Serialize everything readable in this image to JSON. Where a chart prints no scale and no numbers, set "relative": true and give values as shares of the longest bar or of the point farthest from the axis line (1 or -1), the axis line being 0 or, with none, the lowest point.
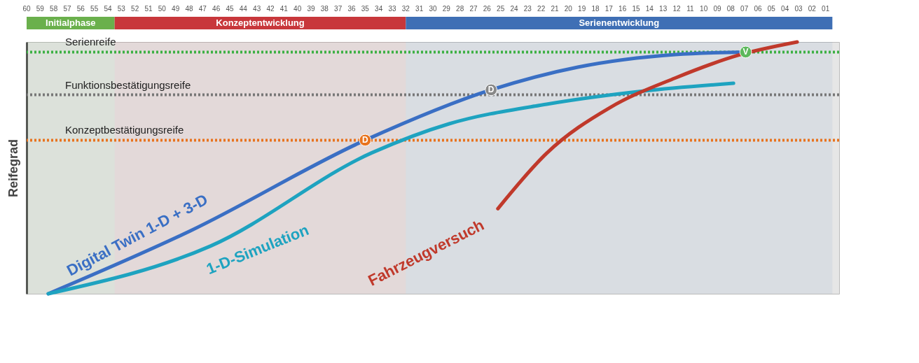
{
  "chart_data": {
    "type": "line",
    "relative": true,
    "ylabel": "Reifegrad",
    "grid": false,
    "marker": "none",
    "line_style": "solid",
    "xlim": [
      60,
      0
    ],
    "xticks": [
      60,
      59,
      58,
      57,
      56,
      55,
      54,
      53,
      52,
      51,
      50,
      49,
      48,
      47,
      46,
      45,
      44,
      43,
      42,
      41,
      40,
      39,
      38,
      37,
      36,
      35,
      34,
      33,
      32,
      31,
      30,
      29,
      28,
      27,
      26,
      25,
      24,
      23,
      22,
      21,
      20,
      19,
      18,
      17,
      16,
      15,
      14,
      13,
      12,
      11,
      10,
      {
        "value": 9,
        "label": "09"
      },
      {
        "value": 8,
        "label": "08"
      },
      {
        "value": 7,
        "label": "07"
      },
      {
        "value": 6,
        "label": "06"
      },
      {
        "value": 5,
        "label": "05"
      },
      {
        "value": 4,
        "label": "04"
      },
      {
        "value": 3,
        "label": "03"
      },
      {
        "value": 2,
        "label": "02"
      },
      {
        "value": 1,
        "label": "01"
      }
    ],
    "series": [
      {
        "name": "Digital Twin 1-D + 3-D",
        "color": "#3a6fc4",
        "x": [
          58.4,
          47.9,
          35.0,
          25.7,
          19.3,
          12.1,
          6.9
        ],
        "values": [
          0,
          0.25,
          0.61,
          0.81,
          0.9,
          0.95,
          0.96
        ]
      },
      {
        "name": "1-D-Simulation",
        "color": "#1ea3c0",
        "x": [
          58.4,
          46.4,
          34.5,
          28.8,
          21.6,
          14.5,
          7.8
        ],
        "values": [
          0,
          0.19,
          0.56,
          0.675,
          0.753,
          0.805,
          0.836
        ]
      },
      {
        "name": "Fahrzeugversuch",
        "color": "#c0392b",
        "x": [
          25.2,
          21.6,
          16.9,
          12.1,
          7.4,
          3.1
        ],
        "values": [
          0.338,
          0.558,
          0.74,
          0.857,
          0.948,
          1.0
        ]
      }
    ],
    "ref_lines": [
      {
        "axis": "y",
        "value": 0.96,
        "label": "Serienreife",
        "color": "#3cb043",
        "line_style": "dotted"
      },
      {
        "axis": "y",
        "value": 0.79,
        "label": "Funktionsbestätigungsreife",
        "color": "#777777",
        "line_style": "dotted"
      },
      {
        "axis": "y",
        "value": 0.61,
        "label": "Konzeptbestätigungsreife",
        "color": "#e8731e",
        "line_style": "dotted"
      }
    ],
    "bands": [
      {
        "axis": "x",
        "from": 60,
        "to": 53.5,
        "label": "Initialphase",
        "color": "#6ab04c"
      },
      {
        "axis": "x",
        "from": 53.5,
        "to": 32,
        "label": "Konzeptentwicklung",
        "color": "#c8373b"
      },
      {
        "axis": "x",
        "from": 32,
        "to": 0.5,
        "label": "Serienentwicklung",
        "color": "#3f6fb5"
      }
    ],
    "annotations": [
      {
        "text": "D",
        "x": 35.0,
        "y": 0.61
      },
      {
        "text": "D",
        "x": 25.7,
        "y": 0.81
      },
      {
        "text": "V",
        "x": 6.9,
        "y": 0.96
      }
    ]
  }
}
